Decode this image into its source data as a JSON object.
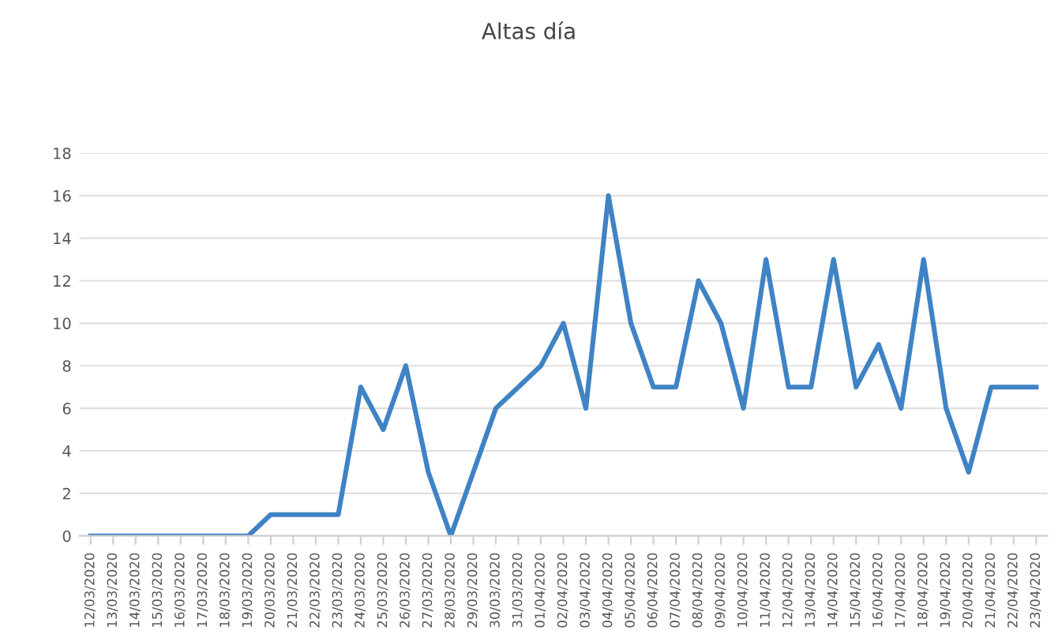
{
  "chart_data": {
    "type": "line",
    "title": "Altas día",
    "categories": [
      "12/03/2020",
      "13/03/2020",
      "14/03/2020",
      "15/03/2020",
      "16/03/2020",
      "17/03/2020",
      "18/03/2020",
      "19/03/2020",
      "20/03/2020",
      "21/03/2020",
      "22/03/2020",
      "23/03/2020",
      "24/03/2020",
      "25/03/2020",
      "26/03/2020",
      "27/03/2020",
      "28/03/2020",
      "29/03/2020",
      "30/03/2020",
      "31/03/2020",
      "01/04/2020",
      "02/04/2020",
      "03/04/2020",
      "04/04/2020",
      "05/04/2020",
      "06/04/2020",
      "07/04/2020",
      "08/04/2020",
      "09/04/2020",
      "10/04/2020",
      "11/04/2020",
      "12/04/2020",
      "13/04/2020",
      "14/04/2020",
      "15/04/2020",
      "16/04/2020",
      "17/04/2020",
      "18/04/2020",
      "19/04/2020",
      "20/04/2020",
      "21/04/2020",
      "22/04/2020",
      "23/04/2020"
    ],
    "series": [
      {
        "color": "#3f83c4",
        "values": [
          0,
          0,
          0,
          0,
          0,
          0,
          0,
          0,
          1,
          1,
          1,
          1,
          7,
          5,
          8,
          3,
          0,
          3,
          6,
          7,
          8,
          10,
          6,
          16,
          10,
          7,
          7,
          12,
          10,
          6,
          13,
          7,
          7,
          13,
          7,
          9,
          6,
          13,
          6,
          3,
          7,
          7,
          7
        ]
      }
    ],
    "ylim": [
      0,
      18
    ],
    "yticks": [
      0,
      2,
      4,
      6,
      8,
      10,
      12,
      14,
      16,
      18
    ],
    "grid": "y",
    "legend": false,
    "marker": "none",
    "line_style": "solid"
  }
}
